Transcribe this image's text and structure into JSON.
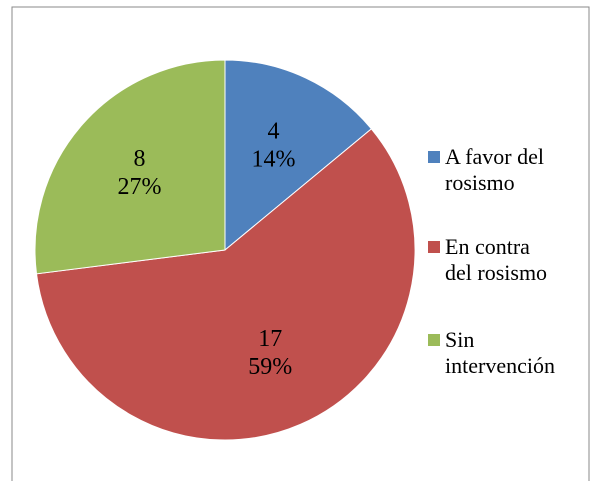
{
  "chart_data": {
    "type": "pie",
    "categories": [
      "A favor del rosismo",
      "En contra del rosismo",
      "Sin intervención"
    ],
    "counts": [
      4,
      17,
      8
    ],
    "values": [
      14,
      59,
      27
    ],
    "value_labels": [
      "14%",
      "59%",
      "27%"
    ],
    "colors": [
      "#4f81bd",
      "#c0504d",
      "#9bbb59"
    ],
    "legend": "right"
  }
}
